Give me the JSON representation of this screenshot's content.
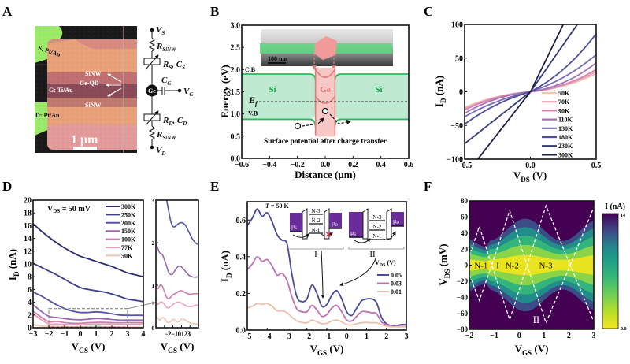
{
  "figure": {
    "panels": [
      "A",
      "B",
      "C",
      "D",
      "E",
      "F"
    ]
  },
  "panel_a": {
    "label": "A",
    "image_labels": {
      "source": "S: Pt/Au",
      "gate": "G: Ti/Au",
      "drain": "D: Pt/Au",
      "sinw_top": "SiNW",
      "geqd": "Ge-QD",
      "sinw_bottom": "SiNW",
      "scale_bar": "1 μm"
    },
    "circuit": {
      "vs": "V",
      "vs_sub": "S",
      "r_top": "R",
      "r_top_sub": "SiNW",
      "rs_cs": "R",
      "rs_cs_sub": "S",
      "rs_cs_c": "C",
      "rs_cs_c_sub": "S",
      "cg": "C",
      "cg_sub": "G",
      "vg": "V",
      "vg_sub": "G",
      "node": "Ge",
      "rd_cd": "R",
      "rd_cd_sub": "D",
      "rd_cd_c": "C",
      "rd_cd_c_sub": "D",
      "r_bottom": "R",
      "r_bottom_sub": "SiNW",
      "vd": "V",
      "vd_sub": "D"
    }
  },
  "chart_data": [
    {
      "id": "B",
      "type": "line",
      "title": "",
      "xlabel": "Distance (μm)",
      "ylabel": "Energy (eV)",
      "xlim": [
        -0.6,
        0.6
      ],
      "ylim": [
        0.0,
        3.0
      ],
      "xticks": [
        "-0.6",
        "-0.4",
        "-0.2",
        "0.0",
        "0.2",
        "0.4",
        "0.6"
      ],
      "yticks": [
        "0.0",
        "0.5",
        "1.0",
        "1.5",
        "2.0",
        "2.5",
        "3.0"
      ],
      "bands": {
        "cb_si": 1.9,
        "vb_si": 0.88,
        "fermi": 1.28,
        "ge_cb_edge": 1.75,
        "ge_vb_edge": 1.15,
        "ge_region": [
          -0.07,
          0.07
        ]
      },
      "annotations": {
        "cb": "C.B",
        "vb": "V.B",
        "fermi": "E",
        "fermi_sub": "f",
        "si_left": "Si",
        "ge": "Ge",
        "si_right": "Si",
        "caption": "Surface potential after charge transfer",
        "tem_scale": "100 nm"
      }
    },
    {
      "id": "C",
      "type": "line",
      "xlabel": "V",
      "xlabel_sub": "DS",
      "xlabel_unit": " (V)",
      "ylabel": "I",
      "ylabel_sub": "D",
      "ylabel_unit": " (nA)",
      "xlim": [
        -0.5,
        0.5
      ],
      "ylim": [
        -100,
        100
      ],
      "xticks": [
        "-0.5",
        "0.0",
        "0.5"
      ],
      "yticks": [
        "-100",
        "-50",
        "0",
        "50",
        "100"
      ],
      "legend_position": "bottom-right",
      "series": [
        {
          "name": "50K",
          "color": "#f3c4b0",
          "i_at_neg05": -23,
          "i_at_pos05": 27
        },
        {
          "name": "70K",
          "color": "#eba5b5",
          "i_at_neg05": -25,
          "i_at_pos05": 30
        },
        {
          "name": "90K",
          "color": "#d982b6",
          "i_at_neg05": -27,
          "i_at_pos05": 33
        },
        {
          "name": "110K",
          "color": "#a772b6",
          "i_at_neg05": -32,
          "i_at_pos05": 43
        },
        {
          "name": "130K",
          "color": "#7a6db5",
          "i_at_neg05": -37,
          "i_at_pos05": 55
        },
        {
          "name": "180K",
          "color": "#4d4f9e",
          "i_at_neg05": -48,
          "i_at_pos05": 86
        },
        {
          "name": "230K",
          "color": "#343a78",
          "i_at_neg05": -77,
          "i_at_pos05": 140
        },
        {
          "name": "300K",
          "color": "#1f2044",
          "i_at_neg05": -125,
          "i_at_pos05": 200
        }
      ]
    },
    {
      "id": "D",
      "type": "line",
      "xlabel": "V",
      "xlabel_sub": "GS",
      "xlabel_unit": " (V)",
      "ylabel": "I",
      "ylabel_sub": "D",
      "ylabel_unit": " (nA)",
      "xlim": [
        -3,
        4
      ],
      "ylim": [
        0,
        20
      ],
      "xticks": [
        "-3",
        "-2",
        "-1",
        "0",
        "1",
        "2",
        "3",
        "4"
      ],
      "yticks": [
        "0",
        "2",
        "4",
        "6",
        "8",
        "10",
        "12",
        "14",
        "16",
        "18",
        "20"
      ],
      "annotation": "V",
      "annotation_sub": "DS",
      "annotation_rest": " = 50 mV",
      "legend_position": "top-right",
      "x": [
        -3,
        -2.5,
        -2,
        -1.5,
        -1,
        -0.5,
        0,
        0.5,
        1,
        1.5,
        2,
        2.5,
        3,
        3.5,
        4
      ],
      "series": [
        {
          "name": "300K",
          "color": "#2a2d6a",
          "values": [
            16.3,
            15.2,
            14.2,
            13.3,
            12.5,
            11.8,
            11.2,
            10.8,
            10.4,
            10.0,
            9.6,
            9.1,
            8.6,
            8.3,
            8.0
          ]
        },
        {
          "name": "250K",
          "color": "#3b3f8c",
          "values": [
            10.1,
            9.5,
            8.9,
            8.3,
            7.6,
            6.9,
            6.3,
            6.0,
            5.8,
            5.6,
            5.3,
            4.9,
            4.5,
            4.3,
            4.1
          ]
        },
        {
          "name": "200K",
          "color": "#5355a6",
          "values": [
            5.6,
            5.0,
            4.3,
            3.6,
            3.0,
            2.6,
            2.4,
            2.4,
            2.5,
            2.4,
            2.2,
            2.0,
            1.95,
            1.95,
            1.95
          ]
        },
        {
          "name": "150K",
          "color": "#9867b1",
          "values": [
            3.6,
            2.6,
            1.8,
            1.6,
            1.45,
            1.3,
            1.25,
            1.35,
            1.45,
            1.4,
            1.3,
            1.2,
            1.2,
            1.2,
            1.2
          ]
        },
        {
          "name": "100K",
          "color": "#d27bb0",
          "values": [
            2.6,
            1.7,
            0.95,
            1.0,
            0.8,
            0.7,
            0.7,
            0.8,
            0.85,
            0.85,
            0.8,
            0.78,
            0.8,
            0.8,
            0.8
          ]
        },
        {
          "name": "77K",
          "color": "#e9a2b5",
          "values": [
            2.2,
            1.3,
            0.6,
            0.6,
            0.5,
            0.5,
            0.45,
            0.55,
            0.6,
            0.6,
            0.55,
            0.52,
            0.52,
            0.55,
            0.55
          ]
        },
        {
          "name": "50K",
          "color": "#f2c6b2",
          "values": [
            0.5,
            0.3,
            0.25,
            0.2,
            0.22,
            0.15,
            0.15,
            0.18,
            0.2,
            0.18,
            0.12,
            0.1,
            0.1,
            0.1,
            0.1
          ]
        }
      ],
      "inset": {
        "xlim": [
          -2,
          3
        ],
        "ylim": [
          0,
          3
        ],
        "xticks": [
          "-2",
          "-1",
          "0",
          "1",
          "2",
          "3"
        ],
        "yticks": [
          "0",
          "1",
          "2",
          "3"
        ],
        "xlabel": "V",
        "xlabel_sub": "GS",
        "xlabel_unit": " (V)",
        "x": [
          -2,
          -1.75,
          -1.5,
          -1.25,
          -1,
          -0.75,
          -0.5,
          -0.25,
          0,
          0.25,
          0.5,
          0.75,
          1,
          1.25,
          1.5,
          1.75,
          2,
          2.25,
          2.5,
          2.75,
          3
        ],
        "series": [
          {
            "name": "200K",
            "color": "#5355a6",
            "values": [
              null,
              null,
              null,
              null,
              3.2,
              3.0,
              2.75,
              2.5,
              2.38,
              2.38,
              2.42,
              2.46,
              2.47,
              2.45,
              2.4,
              2.3,
              2.2,
              2.1,
              2.03,
              1.98,
              1.96
            ]
          },
          {
            "name": "150K",
            "color": "#9867b1",
            "values": [
              2.0,
              1.85,
              1.75,
              1.72,
              1.6,
              1.45,
              1.3,
              1.25,
              1.27,
              1.35,
              1.42,
              1.45,
              1.43,
              1.38,
              1.32,
              1.26,
              1.22,
              1.2,
              1.19,
              1.19,
              1.2
            ]
          },
          {
            "name": "100K",
            "color": "#d27bb0",
            "values": [
              0.95,
              0.92,
              1.0,
              0.98,
              0.85,
              0.72,
              0.68,
              0.72,
              0.78,
              0.8,
              0.83,
              0.86,
              0.87,
              0.85,
              0.82,
              0.8,
              0.79,
              0.79,
              0.8,
              0.8,
              0.8
            ]
          },
          {
            "name": "77K",
            "color": "#e9a2b5",
            "values": [
              0.6,
              0.55,
              0.6,
              0.6,
              0.55,
              0.48,
              0.47,
              0.5,
              0.55,
              0.58,
              0.6,
              0.6,
              0.58,
              0.55,
              0.52,
              0.5,
              0.5,
              0.5,
              0.52,
              0.53,
              0.53
            ]
          },
          {
            "name": "50K",
            "color": "#f2c6b2",
            "values": [
              0.28,
              0.22,
              0.18,
              0.24,
              0.22,
              0.15,
              0.12,
              0.15,
              0.2,
              0.18,
              0.14,
              0.15,
              0.2,
              0.2,
              0.18,
              0.14,
              0.12,
              0.1,
              0.1,
              0.09,
              0.09
            ]
          }
        ]
      }
    },
    {
      "id": "E",
      "type": "line",
      "xlabel": "V",
      "xlabel_sub": "GS",
      "xlabel_unit": " (V)",
      "ylabel": "I",
      "ylabel_sub": "D",
      "ylabel_unit": " (nA)",
      "xlim": [
        -5,
        3
      ],
      "ylim": [
        0,
        0.7
      ],
      "xticks": [
        "-5",
        "-4",
        "-3",
        "-2",
        "-1",
        "0",
        "1",
        "2",
        "3"
      ],
      "yticks": [
        "0.0",
        "0.2",
        "0.4",
        "0.6"
      ],
      "annotation": "T",
      "annotation_rest": " = 50 K",
      "legend_title": "V",
      "legend_title_sub": "DS",
      "legend_title_unit": " (V)",
      "legend_position": "right",
      "x": [
        -5,
        -4.75,
        -4.5,
        -4.25,
        -4,
        -3.75,
        -3.5,
        -3.25,
        -3,
        -2.75,
        -2.5,
        -2.25,
        -2,
        -1.75,
        -1.5,
        -1.25,
        -1,
        -0.75,
        -0.5,
        -0.25,
        0,
        0.25,
        0.5,
        0.75,
        1,
        1.25,
        1.5,
        1.75,
        2,
        2.25,
        2.5,
        2.75,
        3
      ],
      "series": [
        {
          "name": "0.05",
          "color": "#4a4a9a",
          "values": [
            0.57,
            0.61,
            0.66,
            0.62,
            0.64,
            0.59,
            0.52,
            0.49,
            0.47,
            0.3,
            0.18,
            0.155,
            0.17,
            0.245,
            0.2,
            0.13,
            0.14,
            0.19,
            0.215,
            0.17,
            0.1,
            0.08,
            0.12,
            0.16,
            0.17,
            0.17,
            0.15,
            0.07,
            0.035,
            0.025,
            0.025,
            0.03,
            0.03
          ]
        },
        {
          "name": "0.03",
          "color": "#c070b4",
          "values": [
            0.33,
            0.36,
            0.4,
            0.375,
            0.385,
            0.35,
            0.3,
            0.31,
            0.27,
            0.18,
            0.115,
            0.1,
            0.1,
            0.135,
            0.11,
            0.075,
            0.085,
            0.12,
            0.135,
            0.1,
            0.055,
            0.05,
            0.075,
            0.1,
            0.1,
            0.095,
            0.09,
            0.045,
            0.03,
            0.02,
            0.02,
            0.02,
            0.02
          ]
        },
        {
          "name": "0.01",
          "color": "#f0c0ae",
          "values": [
            0.12,
            0.13,
            0.145,
            0.14,
            0.145,
            0.13,
            0.105,
            0.105,
            0.095,
            0.07,
            0.05,
            0.042,
            0.04,
            0.055,
            0.045,
            0.035,
            0.038,
            0.05,
            0.055,
            0.045,
            0.03,
            0.028,
            0.035,
            0.04,
            0.042,
            0.04,
            0.04,
            0.03,
            0.022,
            0.018,
            0.018,
            0.018,
            0.018
          ]
        }
      ],
      "inset_schematic": {
        "region_i": "I",
        "region_ii": "II",
        "levels": [
          "N-3",
          "N-2",
          "N-1"
        ],
        "mu_s": "μ",
        "mu_s_sub": "S",
        "mu_d": "μ",
        "mu_d_sub": "D",
        "blocked_marker": "✕"
      }
    },
    {
      "id": "F",
      "type": "heatmap",
      "xlabel": "V",
      "xlabel_sub": "GS",
      "xlabel_unit": " (V)",
      "ylabel": "V",
      "ylabel_sub": "DS",
      "ylabel_unit": " (mV)",
      "xlim": [
        -2,
        3
      ],
      "ylim": [
        -80,
        80
      ],
      "xticks": [
        "-2",
        "-1",
        "0",
        "1",
        "2",
        "3"
      ],
      "yticks": [
        "-80",
        "-60",
        "-40",
        "-20",
        "0",
        "20",
        "40",
        "60",
        "80"
      ],
      "colorbar": {
        "label": "I (nA)",
        "min": 0.0,
        "max": 14,
        "min_label": "0.0",
        "max_label": "14",
        "colormap": "viridis_r"
      },
      "degeneracy_points": [
        -2.1,
        -1.1,
        0.32,
        2.05
      ],
      "diamond_tips": [
        {
          "x": -1.6,
          "top": 48,
          "bottom": -44
        },
        {
          "x": -0.38,
          "top": 68,
          "bottom": -68
        },
        {
          "x": 1.08,
          "top": 74,
          "bottom": -72
        },
        {
          "x": 3.0,
          "top": 72,
          "bottom": -70
        }
      ],
      "annotations": {
        "n1": "N-1",
        "region_i": "I",
        "n2": "N-2",
        "n3": "N-3",
        "region_ii": "II"
      }
    }
  ]
}
